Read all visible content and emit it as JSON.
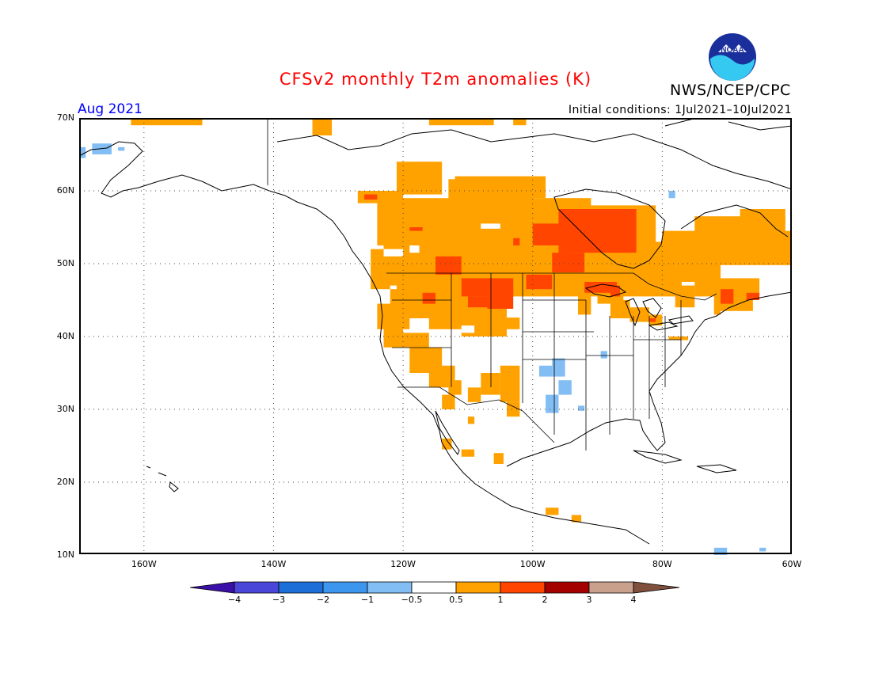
{
  "header": {
    "title": "CFSv2 monthly T2m anomalies (K)",
    "org": "NWS/NCEP/CPC",
    "month": "Aug 2021",
    "initial_conditions": "Initial conditions: 1Jul2021–10Jul2021",
    "logo_text": "NOAA"
  },
  "axes": {
    "lat_labels": [
      "70N",
      "60N",
      "50N",
      "40N",
      "30N",
      "20N",
      "10N"
    ],
    "lon_labels": [
      "160W",
      "140W",
      "120W",
      "100W",
      "80W",
      "60W"
    ]
  },
  "colorbar": {
    "labels": [
      "−4",
      "−3",
      "−2",
      "−1",
      "−0.5",
      "0.5",
      "1",
      "2",
      "3",
      "4"
    ],
    "colors": [
      "#3a10a8",
      "#4a46d8",
      "#1e6ed8",
      "#3c96ee",
      "#82bef4",
      "#ffffff",
      "#ffa200",
      "#ff4500",
      "#a50000",
      "#c8a08c",
      "#80503c"
    ]
  },
  "map_style": {
    "orange": "#ffa200",
    "red": "#ff4500",
    "light_blue": "#82bef4",
    "mid_blue": "#3c96ee",
    "grid": "#444444"
  }
}
